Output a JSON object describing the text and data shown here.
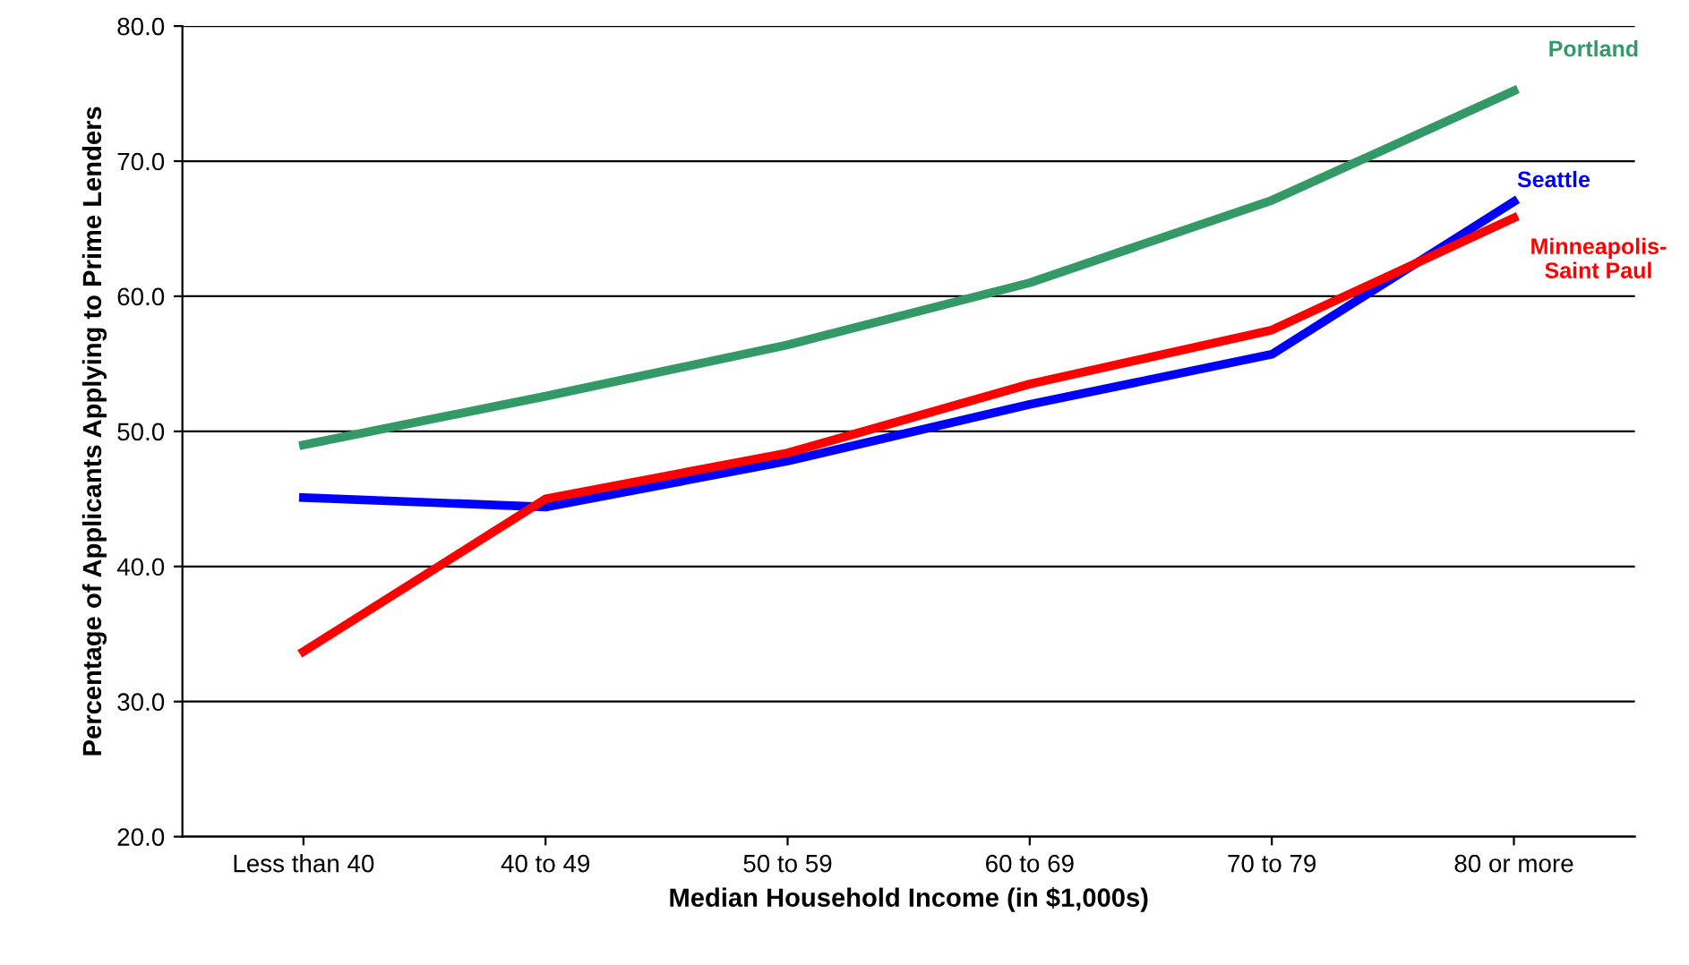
{
  "chart_data": {
    "type": "line",
    "xlabel": "Median Household Income (in $1,000s)",
    "ylabel": "Percentage of Applicants Applying to Prime Lenders",
    "categories": [
      "Less than 40",
      "40 to 49",
      "50 to 59",
      "60 to 69",
      "70 to 79",
      "80 or more"
    ],
    "series": [
      {
        "name": "Portland",
        "color": "#339966",
        "values": [
          49.0,
          52.6,
          56.4,
          61.0,
          67.1,
          75.2
        ]
      },
      {
        "name": "Seattle",
        "color": "#0000ff",
        "values": [
          45.1,
          44.4,
          47.8,
          52.0,
          55.7,
          67.0
        ]
      },
      {
        "name": "Minneapolis-\nSaint Paul",
        "color": "#ff0000",
        "values": [
          33.7,
          45.0,
          48.4,
          53.5,
          57.5,
          65.8
        ]
      }
    ],
    "ylim": [
      20,
      80
    ],
    "yticks": [
      {
        "value": 20,
        "label": "20.0"
      },
      {
        "value": 30,
        "label": "30.0"
      },
      {
        "value": 40,
        "label": "40.0"
      },
      {
        "value": 50,
        "label": "50.0"
      },
      {
        "value": 60,
        "label": "60.0"
      },
      {
        "value": 70,
        "label": "70.0"
      },
      {
        "value": 80,
        "label": "80.0"
      }
    ],
    "grid": "y",
    "legend": false,
    "marker": "none",
    "line_style": "solid"
  }
}
